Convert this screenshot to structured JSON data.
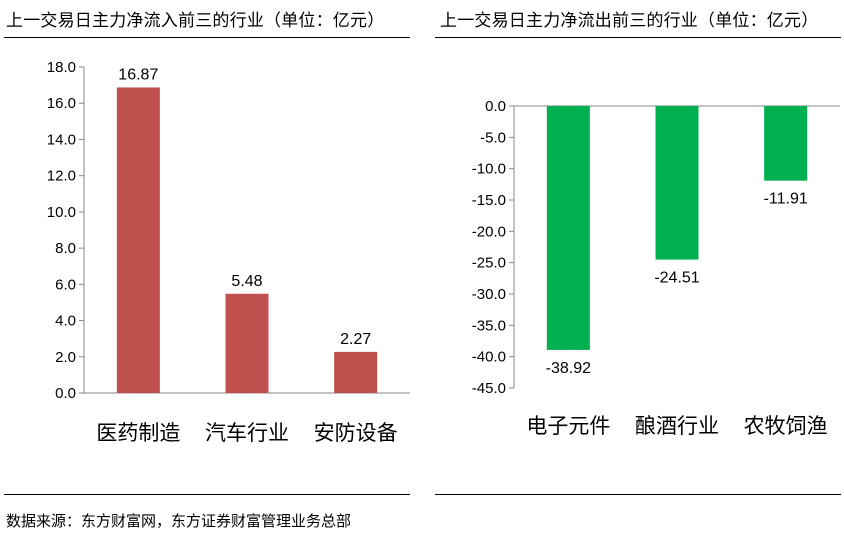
{
  "source_note": "数据来源：东方财富网，东方证券财富管理业务总部",
  "chart_data": [
    {
      "type": "bar",
      "title": "上一交易日主力净流入前三的行业（单位：亿元）",
      "categories": [
        "医药制造",
        "汽车行业",
        "安防设备"
      ],
      "values": [
        16.87,
        5.48,
        2.27
      ],
      "value_labels": [
        "16.87",
        "5.48",
        "2.27"
      ],
      "ylim": [
        0,
        18
      ],
      "yticks": [
        "0.0",
        "2.0",
        "4.0",
        "6.0",
        "8.0",
        "10.0",
        "12.0",
        "14.0",
        "16.0",
        "18.0"
      ],
      "bar_color": "#c0504d",
      "grid": false,
      "legend": "none"
    },
    {
      "type": "bar",
      "title": "上一交易日主力净流出前三的行业（单位：亿元）",
      "categories": [
        "电子元件",
        "酿酒行业",
        "农牧饲渔"
      ],
      "values": [
        -38.92,
        -24.51,
        -11.91
      ],
      "value_labels": [
        "-38.92",
        "-24.51",
        "-11.91"
      ],
      "ylim": [
        -45,
        0
      ],
      "yticks": [
        "0.0",
        "-5.0",
        "-10.0",
        "-15.0",
        "-20.0",
        "-25.0",
        "-30.0",
        "-35.0",
        "-40.0",
        "-45.0"
      ],
      "bar_color": "#00b050",
      "grid": false,
      "legend": "none"
    }
  ]
}
